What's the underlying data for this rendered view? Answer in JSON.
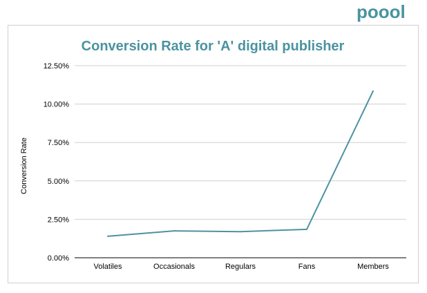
{
  "brand": {
    "logo_text": "poool",
    "logo_color": "#4a93a0"
  },
  "chart_data": {
    "type": "line",
    "title": "Conversion Rate for 'A' digital publisher",
    "xlabel": "",
    "ylabel": "Conversion Rate",
    "categories": [
      "Volatiles",
      "Occasionals",
      "Regulars",
      "Fans",
      "Members"
    ],
    "series": [
      {
        "name": "Conversion Rate",
        "values": [
          1.4,
          1.75,
          1.7,
          1.85,
          10.85
        ],
        "color": "#4a93a0"
      }
    ],
    "y_unit": "%",
    "ylim": [
      0,
      12.5
    ],
    "yticks": [
      "0.00%",
      "2.50%",
      "5.00%",
      "7.50%",
      "10.00%",
      "12.50%"
    ],
    "grid": true
  }
}
